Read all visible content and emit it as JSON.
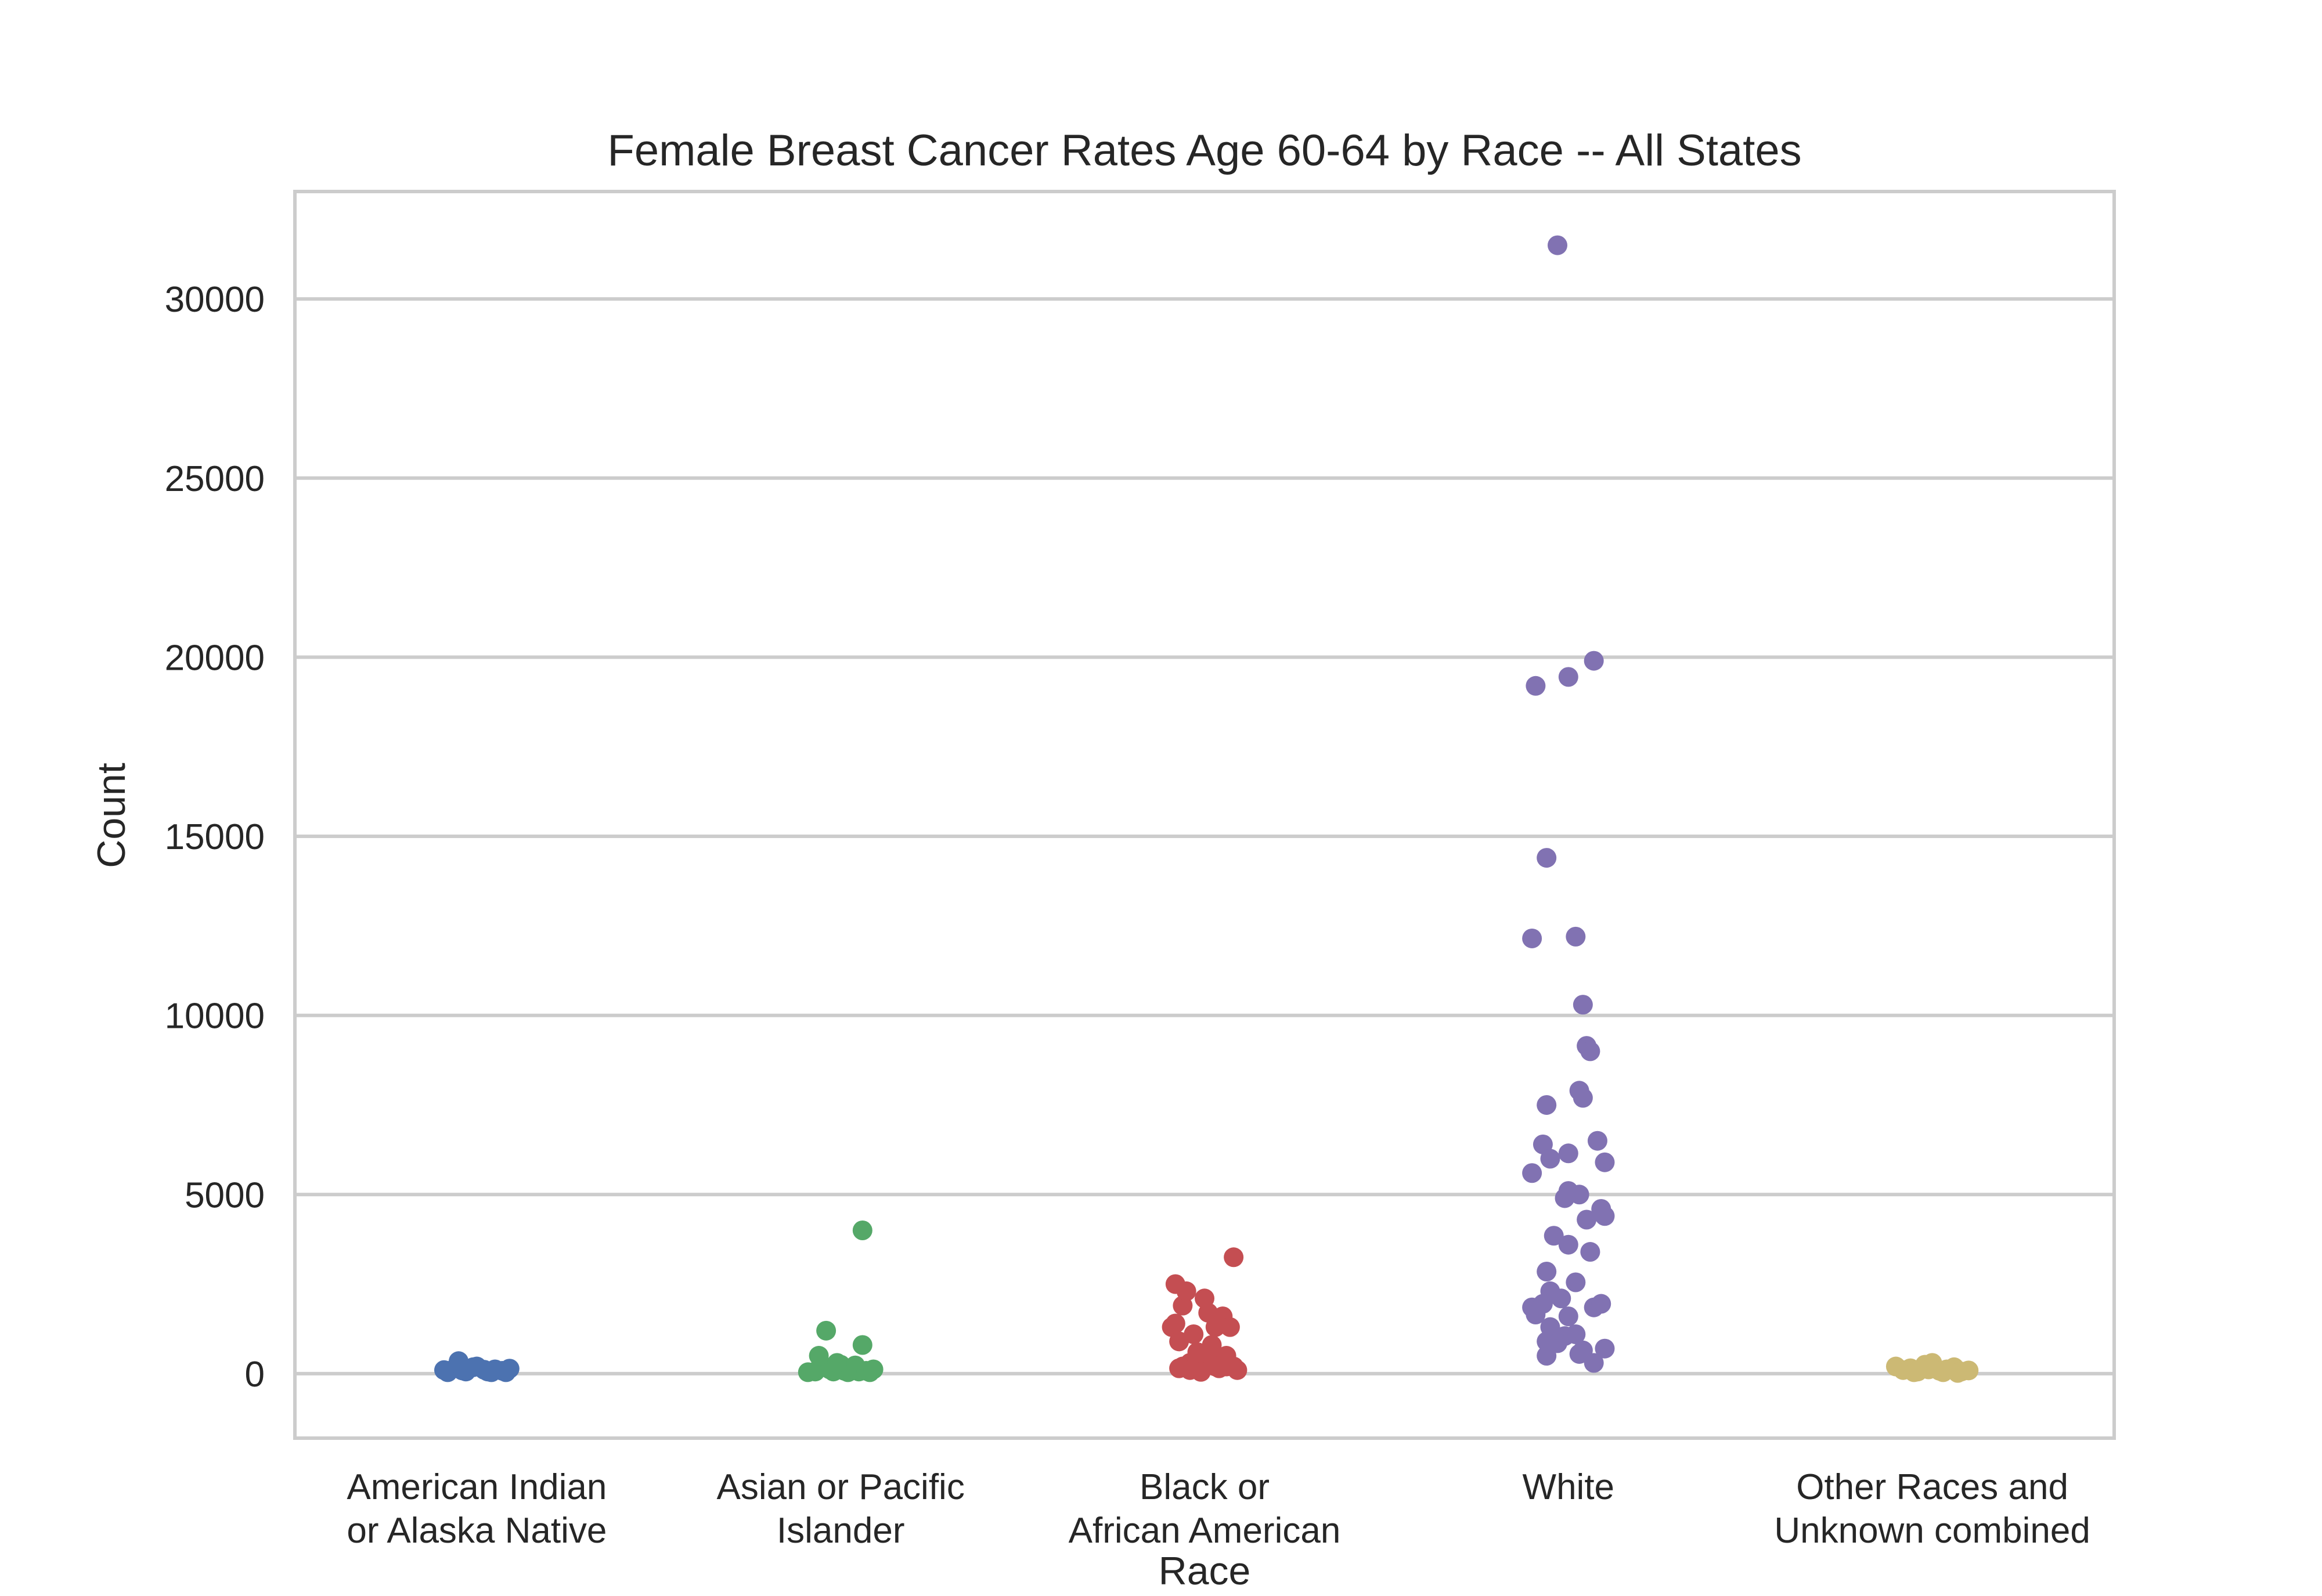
{
  "chart_data": {
    "type": "scatter",
    "title": "Female Breast Cancer Rates Age 60-64 by Race -- All States",
    "xlabel": "Race",
    "ylabel": "Count",
    "ylim": [
      -1800,
      33000
    ],
    "yticks": [
      0,
      5000,
      10000,
      15000,
      20000,
      25000,
      30000
    ],
    "grid": "horizontal",
    "legend": "none",
    "categories": [
      {
        "label_lines": [
          "American Indian",
          "or Alaska Native"
        ],
        "color": "#4c72b0"
      },
      {
        "label_lines": [
          "Asian or Pacific",
          "Islander"
        ],
        "color": "#55a868"
      },
      {
        "label_lines": [
          "Black or",
          "African American"
        ],
        "color": "#c44e52"
      },
      {
        "label_lines": [
          "White"
        ],
        "color": "#8172b2"
      },
      {
        "label_lines": [
          "Other Races and",
          "Unknown combined"
        ],
        "color": "#ccb974"
      }
    ],
    "points": [
      [
        [
          -0.08,
          40
        ],
        [
          -0.06,
          150
        ],
        [
          -0.04,
          90
        ],
        [
          -0.03,
          60
        ],
        [
          -0.01,
          180
        ],
        [
          0.0,
          200
        ],
        [
          0.02,
          110
        ],
        [
          0.03,
          60
        ],
        [
          0.05,
          120
        ],
        [
          0.07,
          80
        ],
        [
          0.09,
          140
        ],
        [
          -0.09,
          100
        ],
        [
          0.08,
          40
        ],
        [
          -0.05,
          350
        ],
        [
          0.04,
          40
        ]
      ],
      [
        [
          -0.09,
          40
        ],
        [
          -0.07,
          60
        ],
        [
          -0.05,
          220
        ],
        [
          -0.04,
          1200
        ],
        [
          -0.03,
          120
        ],
        [
          -0.02,
          60
        ],
        [
          0.0,
          250
        ],
        [
          0.01,
          80
        ],
        [
          0.02,
          40
        ],
        [
          0.03,
          150
        ],
        [
          0.04,
          230
        ],
        [
          0.05,
          60
        ],
        [
          0.06,
          800
        ],
        [
          0.07,
          80
        ],
        [
          0.08,
          40
        ],
        [
          0.09,
          120
        ],
        [
          -0.06,
          500
        ],
        [
          -0.01,
          300
        ],
        [
          0.06,
          4000
        ]
      ],
      [
        [
          -0.09,
          1300
        ],
        [
          -0.08,
          2500
        ],
        [
          -0.07,
          900
        ],
        [
          -0.06,
          1900
        ],
        [
          -0.05,
          2300
        ],
        [
          -0.04,
          300
        ],
        [
          -0.03,
          1100
        ],
        [
          -0.02,
          600
        ],
        [
          0.0,
          2100
        ],
        [
          0.01,
          1700
        ],
        [
          0.02,
          800
        ],
        [
          0.03,
          1300
        ],
        [
          0.04,
          400
        ],
        [
          0.05,
          1600
        ],
        [
          0.06,
          200
        ],
        [
          0.07,
          1300
        ],
        [
          0.08,
          3250
        ],
        [
          0.09,
          100
        ],
        [
          -0.08,
          1400
        ],
        [
          -0.06,
          200
        ],
        [
          -0.04,
          100
        ],
        [
          -0.02,
          500
        ],
        [
          0.0,
          300
        ],
        [
          0.02,
          450
        ],
        [
          0.04,
          150
        ],
        [
          0.06,
          500
        ],
        [
          0.08,
          200
        ],
        [
          -0.07,
          150
        ],
        [
          -0.01,
          50
        ],
        [
          0.03,
          200
        ]
      ],
      [
        [
          -0.03,
          31500
        ],
        [
          -0.09,
          19200
        ],
        [
          0.0,
          19450
        ],
        [
          0.07,
          19900
        ],
        [
          -0.06,
          14400
        ],
        [
          -0.1,
          12150
        ],
        [
          0.02,
          12200
        ],
        [
          0.04,
          10300
        ],
        [
          0.05,
          9150
        ],
        [
          0.06,
          9000
        ],
        [
          0.03,
          7900
        ],
        [
          0.04,
          7700
        ],
        [
          -0.06,
          7500
        ],
        [
          -0.07,
          6400
        ],
        [
          0.08,
          6500
        ],
        [
          -0.05,
          6000
        ],
        [
          0.0,
          6150
        ],
        [
          0.1,
          5900
        ],
        [
          -0.1,
          5600
        ],
        [
          0.0,
          5100
        ],
        [
          0.03,
          5000
        ],
        [
          -0.01,
          4900
        ],
        [
          0.09,
          4600
        ],
        [
          0.05,
          4300
        ],
        [
          0.1,
          4400
        ],
        [
          -0.04,
          3850
        ],
        [
          0.0,
          3600
        ],
        [
          0.06,
          3400
        ],
        [
          -0.06,
          2850
        ],
        [
          0.02,
          2550
        ],
        [
          -0.05,
          2300
        ],
        [
          -0.02,
          2100
        ],
        [
          -0.1,
          1850
        ],
        [
          -0.09,
          1650
        ],
        [
          -0.07,
          1950
        ],
        [
          0.07,
          1850
        ],
        [
          0.09,
          1950
        ],
        [
          -0.05,
          1300
        ],
        [
          0.0,
          1600
        ],
        [
          -0.01,
          1050
        ],
        [
          0.02,
          1100
        ],
        [
          -0.06,
          900
        ],
        [
          0.04,
          650
        ],
        [
          0.07,
          300
        ],
        [
          -0.06,
          500
        ],
        [
          0.03,
          550
        ],
        [
          0.1,
          700
        ],
        [
          -0.03,
          850
        ]
      ],
      [
        [
          -0.1,
          200
        ],
        [
          -0.08,
          100
        ],
        [
          -0.06,
          150
        ],
        [
          -0.04,
          60
        ],
        [
          -0.02,
          250
        ],
        [
          0.0,
          300
        ],
        [
          0.02,
          80
        ],
        [
          0.04,
          120
        ],
        [
          0.06,
          180
        ],
        [
          0.08,
          60
        ],
        [
          0.1,
          90
        ],
        [
          -0.05,
          40
        ],
        [
          0.03,
          40
        ],
        [
          -0.01,
          120
        ],
        [
          0.07,
          20
        ]
      ]
    ]
  }
}
